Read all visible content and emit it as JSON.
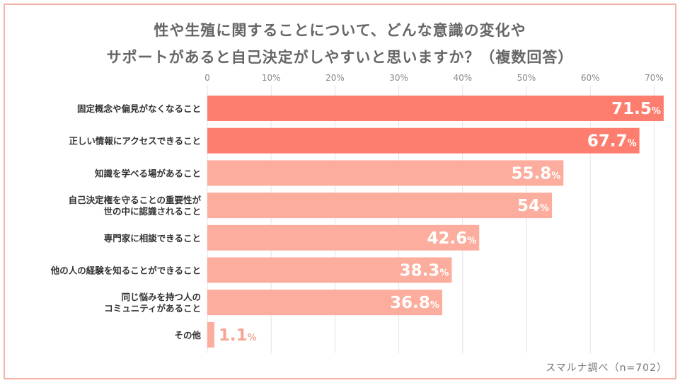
{
  "chart_data": {
    "type": "bar",
    "orientation": "horizontal",
    "title_lines": [
      "性や生殖に関することについて、どんな意識の変化や",
      "サポートがあると自己決定がしやすいと思いますか？（複数回答）"
    ],
    "x_ticks": [
      "0",
      "10%",
      "20%",
      "30%",
      "40%",
      "50%",
      "60%",
      "70%"
    ],
    "x_range": [
      0,
      70
    ],
    "grid": true,
    "categories": [
      [
        "固定概念や偏見がなくなること"
      ],
      [
        "正しい情報にアクセスできること"
      ],
      [
        "知識を学べる場があること"
      ],
      [
        "自己決定権を守ることの重要性が",
        "世の中に認識されること"
      ],
      [
        "専門家に相談できること"
      ],
      [
        "他の人の経験を知ることができること"
      ],
      [
        "同じ悩みを持つ人の",
        "コミュニティがあること"
      ],
      [
        "その他"
      ]
    ],
    "values": [
      71.5,
      67.7,
      55.8,
      54,
      42.6,
      38.3,
      36.8,
      1.1
    ],
    "value_labels": [
      "71.5",
      "67.7",
      "55.8",
      "54",
      "42.6",
      "38.3",
      "36.8",
      "1.1"
    ],
    "unit": "%",
    "colors": {
      "highlight": "#fd7e6e",
      "normal": "#fcad9d",
      "grid": "#e3e3e3",
      "outside_label": "#f6a596"
    },
    "highlight_count": 2
  },
  "source": "スマルナ調べ（n=702）"
}
